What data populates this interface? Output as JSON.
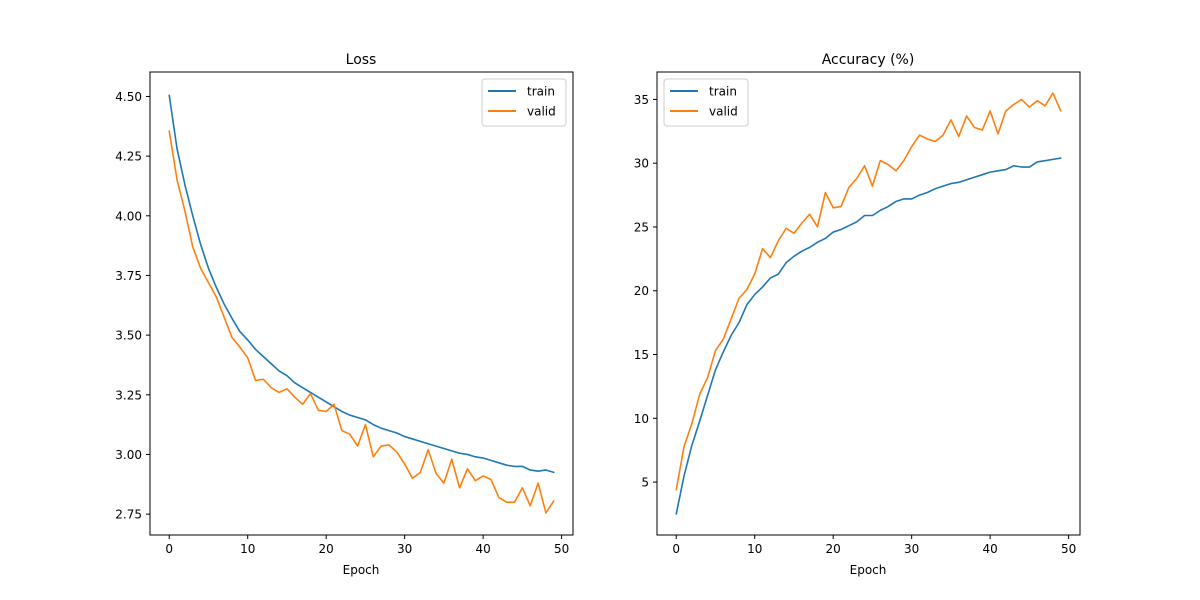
{
  "chart_data": [
    {
      "type": "line",
      "title": "Loss",
      "xlabel": "Epoch",
      "ylabel": "",
      "xlim": [
        -2.45,
        51.45
      ],
      "ylim": [
        2.6625,
        4.6025
      ],
      "xticks": [
        0,
        10,
        20,
        30,
        40,
        50
      ],
      "xtick_labels": [
        "0",
        "10",
        "20",
        "30",
        "40",
        "50"
      ],
      "yticks": [
        2.75,
        3.0,
        3.25,
        3.5,
        3.75,
        4.0,
        4.25,
        4.5
      ],
      "ytick_labels": [
        "2.75",
        "3.00",
        "3.25",
        "3.50",
        "3.75",
        "4.00",
        "4.25",
        "4.50"
      ],
      "grid": false,
      "legend_position": "top-right",
      "x": [
        0,
        1,
        2,
        3,
        4,
        5,
        6,
        7,
        8,
        9,
        10,
        11,
        12,
        13,
        14,
        15,
        16,
        17,
        18,
        19,
        20,
        21,
        22,
        23,
        24,
        25,
        26,
        27,
        28,
        29,
        30,
        31,
        32,
        33,
        34,
        35,
        36,
        37,
        38,
        39,
        40,
        41,
        42,
        43,
        44,
        45,
        46,
        47,
        48,
        49
      ],
      "series": [
        {
          "name": "train",
          "color": "#1f77b4",
          "values": [
            4.505,
            4.28,
            4.13,
            4.0,
            3.88,
            3.78,
            3.7,
            3.63,
            3.57,
            3.515,
            3.48,
            3.44,
            3.41,
            3.38,
            3.35,
            3.33,
            3.3,
            3.28,
            3.26,
            3.24,
            3.22,
            3.2,
            3.18,
            3.165,
            3.155,
            3.145,
            3.125,
            3.11,
            3.1,
            3.09,
            3.075,
            3.065,
            3.055,
            3.045,
            3.035,
            3.025,
            3.015,
            3.005,
            3.0,
            2.99,
            2.985,
            2.975,
            2.965,
            2.955,
            2.95,
            2.95,
            2.935,
            2.93,
            2.935,
            2.925
          ]
        },
        {
          "name": "valid",
          "color": "#ff7f0e",
          "values": [
            4.355,
            4.15,
            4.02,
            3.87,
            3.78,
            3.72,
            3.66,
            3.575,
            3.49,
            3.45,
            3.405,
            3.31,
            3.315,
            3.28,
            3.26,
            3.275,
            3.24,
            3.21,
            3.255,
            3.185,
            3.18,
            3.21,
            3.1,
            3.085,
            3.035,
            3.125,
            2.99,
            3.035,
            3.04,
            3.01,
            2.96,
            2.9,
            2.925,
            3.02,
            2.92,
            2.88,
            2.98,
            2.86,
            2.94,
            2.89,
            2.91,
            2.895,
            2.82,
            2.8,
            2.8,
            2.86,
            2.785,
            2.88,
            2.755,
            2.805
          ]
        }
      ]
    },
    {
      "type": "line",
      "title": "Accuracy (%)",
      "xlabel": "Epoch",
      "ylabel": "",
      "xlim": [
        -2.45,
        51.45
      ],
      "ylim": [
        0.85,
        37.15
      ],
      "xticks": [
        0,
        10,
        20,
        30,
        40,
        50
      ],
      "xtick_labels": [
        "0",
        "10",
        "20",
        "30",
        "40",
        "50"
      ],
      "yticks": [
        5,
        10,
        15,
        20,
        25,
        30,
        35
      ],
      "ytick_labels": [
        "5",
        "10",
        "15",
        "20",
        "25",
        "30",
        "35"
      ],
      "grid": false,
      "legend_position": "top-left",
      "x": [
        0,
        1,
        2,
        3,
        4,
        5,
        6,
        7,
        8,
        9,
        10,
        11,
        12,
        13,
        14,
        15,
        16,
        17,
        18,
        19,
        20,
        21,
        22,
        23,
        24,
        25,
        26,
        27,
        28,
        29,
        30,
        31,
        32,
        33,
        34,
        35,
        36,
        37,
        38,
        39,
        40,
        41,
        42,
        43,
        44,
        45,
        46,
        47,
        48,
        49
      ],
      "series": [
        {
          "name": "train",
          "color": "#1f77b4",
          "values": [
            2.5,
            5.5,
            7.9,
            9.8,
            11.8,
            13.8,
            15.2,
            16.5,
            17.5,
            18.9,
            19.7,
            20.3,
            21.0,
            21.3,
            22.2,
            22.7,
            23.1,
            23.4,
            23.8,
            24.1,
            24.6,
            24.8,
            25.1,
            25.4,
            25.9,
            25.9,
            26.3,
            26.6,
            27.0,
            27.2,
            27.2,
            27.5,
            27.7,
            28.0,
            28.2,
            28.4,
            28.5,
            28.7,
            28.9,
            29.1,
            29.3,
            29.4,
            29.5,
            29.8,
            29.7,
            29.7,
            30.1,
            30.2,
            30.3,
            30.4
          ]
        },
        {
          "name": "valid",
          "color": "#ff7f0e",
          "values": [
            4.4,
            7.8,
            9.6,
            11.9,
            13.2,
            15.3,
            16.2,
            17.8,
            19.4,
            20.1,
            21.3,
            23.3,
            22.6,
            23.9,
            24.9,
            24.5,
            25.3,
            26.0,
            25.0,
            27.7,
            26.5,
            26.6,
            28.1,
            28.8,
            29.8,
            28.2,
            30.2,
            29.9,
            29.4,
            30.2,
            31.3,
            32.2,
            31.9,
            31.7,
            32.2,
            33.4,
            32.1,
            33.7,
            32.8,
            32.6,
            34.1,
            32.3,
            34.1,
            34.6,
            35.0,
            34.4,
            34.9,
            34.5,
            35.5,
            34.1
          ]
        }
      ]
    }
  ]
}
